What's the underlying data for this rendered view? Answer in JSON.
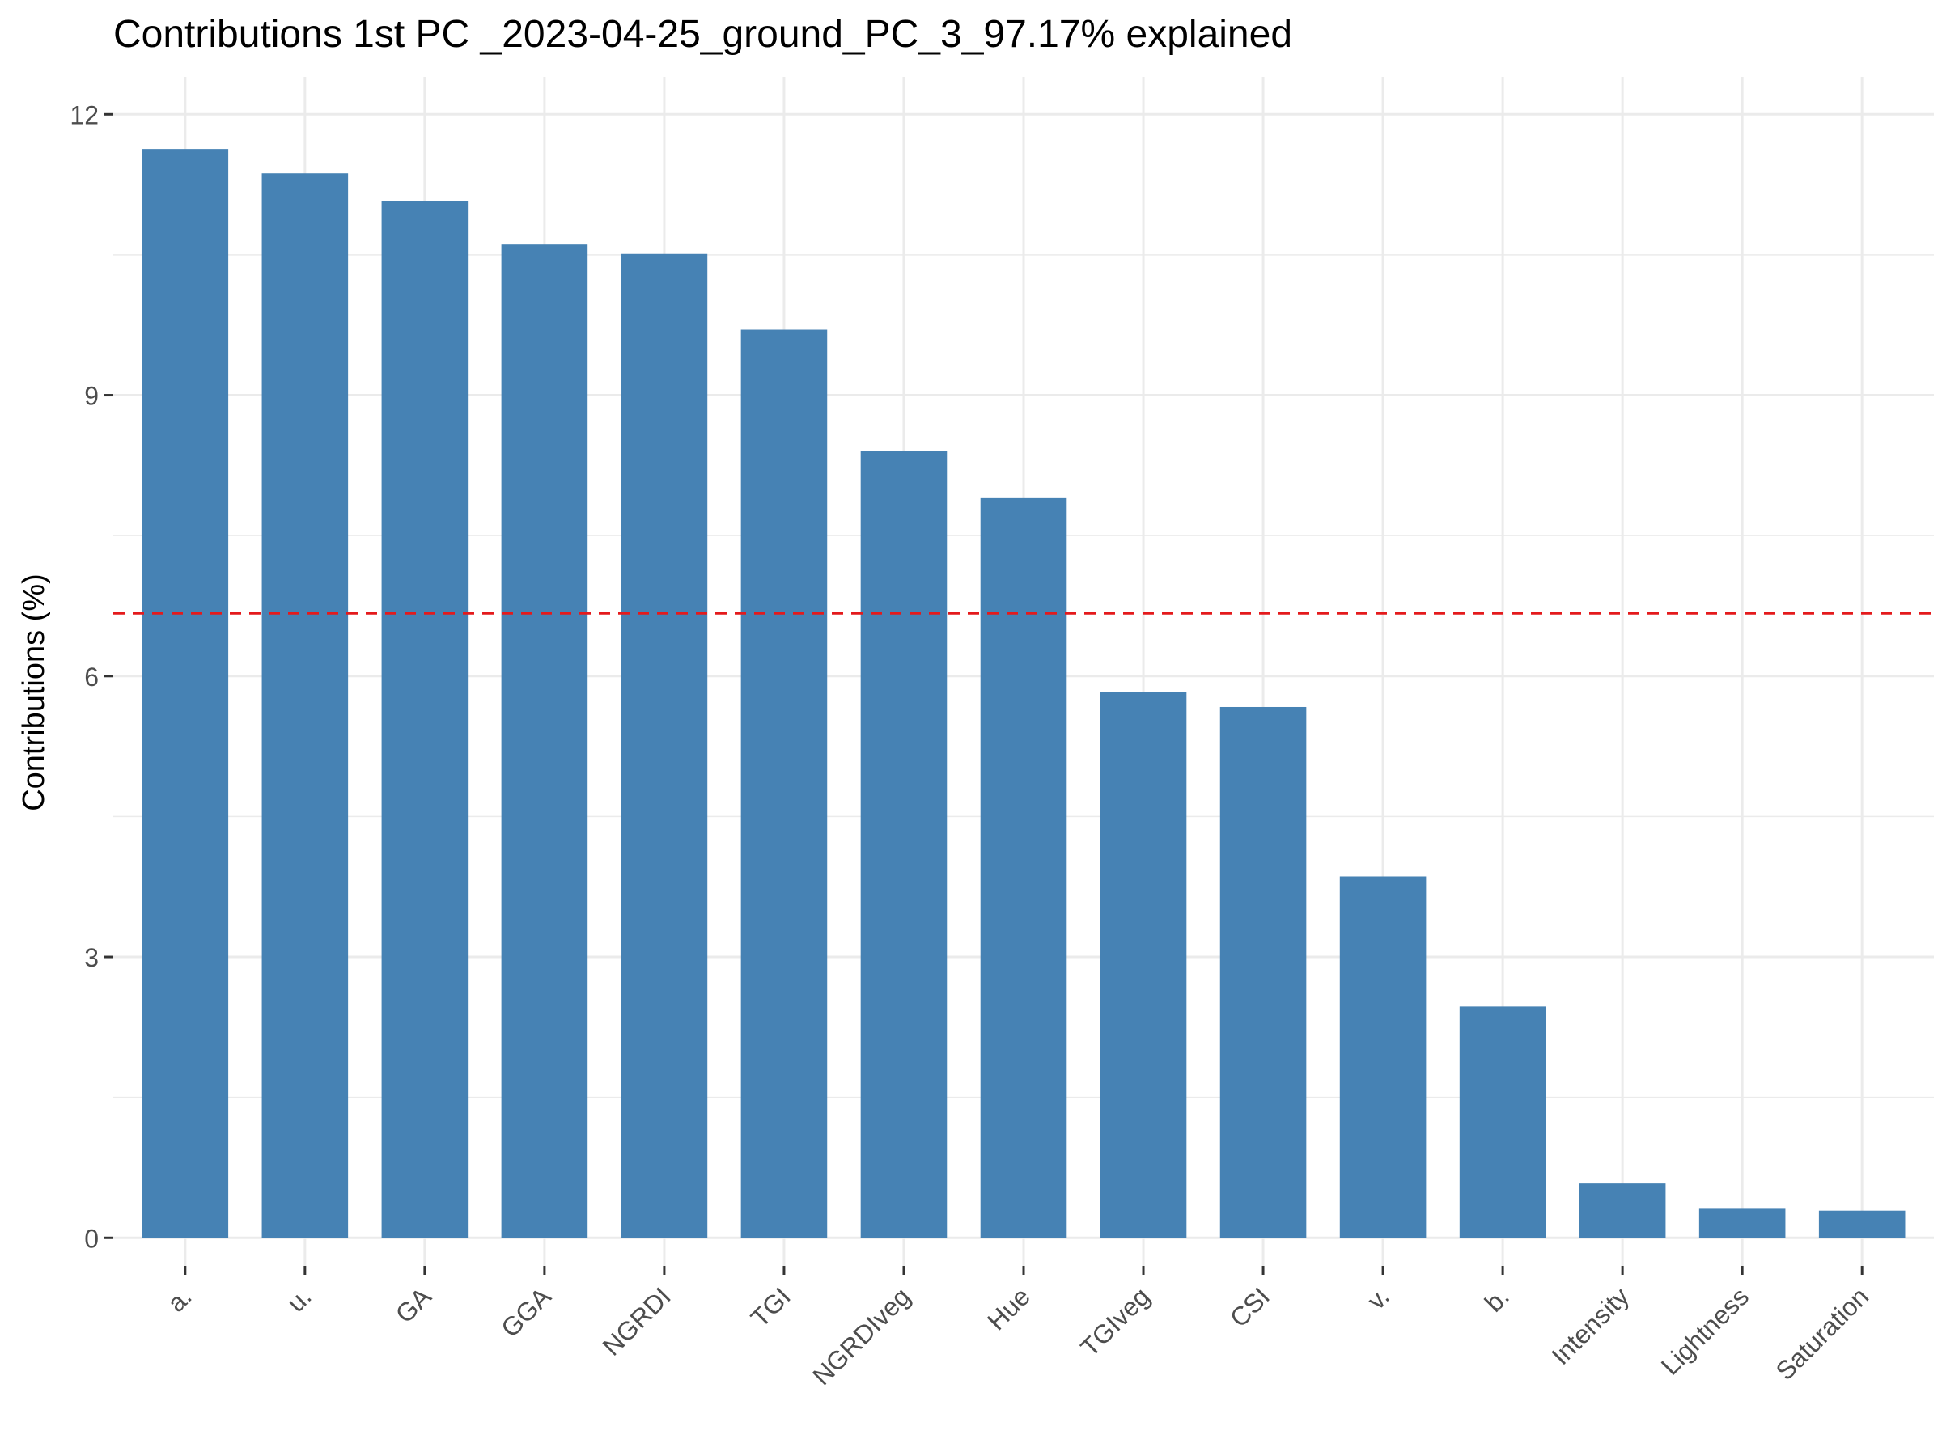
{
  "chart_data": {
    "type": "bar",
    "title": "Contributions 1st PC _2023-04-25_ground_PC_3_97.17% explained",
    "xlabel": "",
    "ylabel": "Contributions (%)",
    "categories": [
      "a.",
      "u.",
      "GA",
      "GGA",
      "NGRDI",
      "TGI",
      "NGRDIveg",
      "Hue",
      "TGIveg",
      "CSI",
      "v.",
      "b.",
      "Intensity",
      "Lightness",
      "Saturation"
    ],
    "values": [
      11.63,
      11.37,
      11.07,
      10.61,
      10.51,
      9.7,
      8.4,
      7.9,
      5.83,
      5.67,
      3.86,
      2.47,
      0.58,
      0.31,
      0.29
    ],
    "ylim": [
      -0.3,
      12.4
    ],
    "yticks": [
      0,
      3,
      6,
      9,
      12
    ],
    "reference_line": {
      "value": 6.67,
      "style": "dashed",
      "color": "#e41a1c"
    },
    "grid": true,
    "legend": "none",
    "colors": {
      "bar": "#4682b4",
      "grid": "#ebebeb",
      "tick": "#333333"
    }
  }
}
